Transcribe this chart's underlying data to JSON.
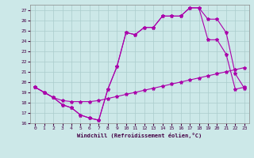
{
  "xlabel": "Windchill (Refroidissement éolien,°C)",
  "bg_color": "#cce8e8",
  "grid_color": "#aacccc",
  "line_color": "#aa00aa",
  "xlim": [
    -0.5,
    23.5
  ],
  "ylim": [
    16,
    27.5
  ],
  "yticks": [
    16,
    17,
    18,
    19,
    20,
    21,
    22,
    23,
    24,
    25,
    26,
    27
  ],
  "xticks": [
    0,
    1,
    2,
    3,
    4,
    5,
    6,
    7,
    8,
    9,
    10,
    11,
    12,
    13,
    14,
    15,
    16,
    17,
    18,
    19,
    20,
    21,
    22,
    23
  ],
  "series1_x": [
    0,
    1,
    2,
    3,
    4,
    5,
    6,
    7,
    8,
    9,
    10,
    11,
    12,
    13,
    14,
    15,
    16,
    17,
    18,
    19,
    20,
    21,
    22,
    23
  ],
  "series1_y": [
    19.5,
    19.0,
    18.5,
    17.8,
    17.5,
    16.8,
    16.5,
    16.3,
    19.3,
    21.5,
    24.8,
    24.6,
    25.3,
    25.3,
    26.4,
    26.4,
    26.4,
    27.2,
    27.2,
    24.1,
    24.1,
    22.7,
    19.3,
    19.5
  ],
  "series2_x": [
    0,
    1,
    2,
    3,
    4,
    5,
    6,
    7,
    8,
    9,
    10,
    11,
    12,
    13,
    14,
    15,
    16,
    17,
    18,
    19,
    20,
    21,
    22,
    23
  ],
  "series2_y": [
    19.5,
    19.0,
    18.5,
    17.8,
    17.5,
    16.8,
    16.5,
    16.3,
    19.3,
    21.5,
    24.8,
    24.6,
    25.3,
    25.3,
    26.4,
    26.4,
    26.4,
    27.2,
    27.2,
    26.1,
    26.1,
    24.8,
    20.8,
    19.4
  ],
  "series3_x": [
    0,
    1,
    2,
    3,
    4,
    5,
    6,
    7,
    8,
    9,
    10,
    11,
    12,
    13,
    14,
    15,
    16,
    17,
    18,
    19,
    20,
    21,
    22,
    23
  ],
  "series3_y": [
    19.5,
    19.0,
    18.5,
    18.2,
    18.1,
    18.1,
    18.1,
    18.2,
    18.4,
    18.6,
    18.8,
    19.0,
    19.2,
    19.4,
    19.6,
    19.8,
    20.0,
    20.2,
    20.4,
    20.6,
    20.8,
    21.0,
    21.2,
    21.4
  ]
}
